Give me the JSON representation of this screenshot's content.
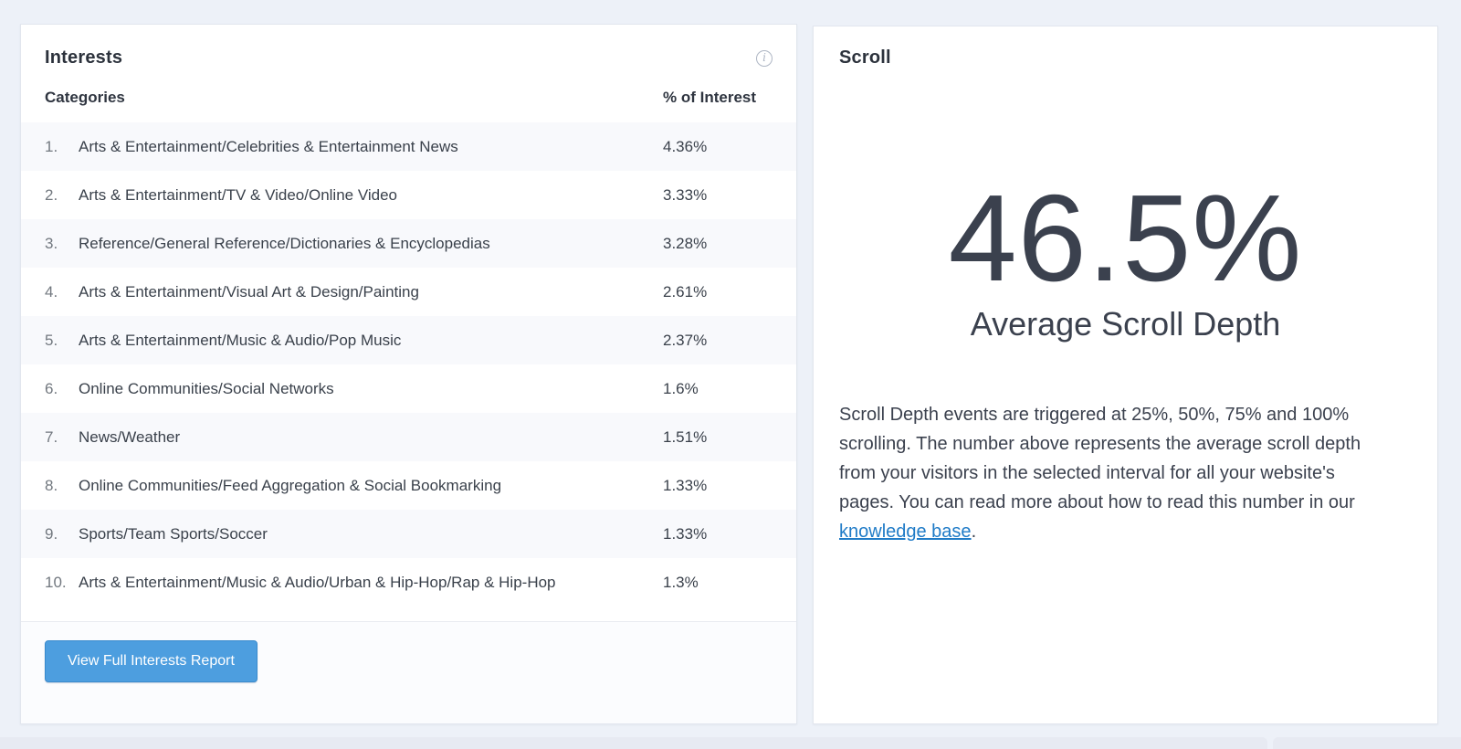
{
  "interests_panel": {
    "title": "Interests",
    "columns": {
      "category": "Categories",
      "percent": "% of Interest"
    },
    "rows": [
      {
        "rank": "1.",
        "category": "Arts & Entertainment/Celebrities & Entertainment News",
        "percent": "4.36%"
      },
      {
        "rank": "2.",
        "category": "Arts & Entertainment/TV & Video/Online Video",
        "percent": "3.33%"
      },
      {
        "rank": "3.",
        "category": "Reference/General Reference/Dictionaries & Encyclopedias",
        "percent": "3.28%"
      },
      {
        "rank": "4.",
        "category": "Arts & Entertainment/Visual Art & Design/Painting",
        "percent": "2.61%"
      },
      {
        "rank": "5.",
        "category": "Arts & Entertainment/Music & Audio/Pop Music",
        "percent": "2.37%"
      },
      {
        "rank": "6.",
        "category": "Online Communities/Social Networks",
        "percent": "1.6%"
      },
      {
        "rank": "7.",
        "category": "News/Weather",
        "percent": "1.51%"
      },
      {
        "rank": "8.",
        "category": "Online Communities/Feed Aggregation & Social Bookmarking",
        "percent": "1.33%"
      },
      {
        "rank": "9.",
        "category": "Sports/Team Sports/Soccer",
        "percent": "1.33%"
      },
      {
        "rank": "10.",
        "category": "Arts & Entertainment/Music & Audio/Urban & Hip-Hop/Rap & Hip-Hop",
        "percent": "1.3%"
      }
    ],
    "button_label": "View Full Interests Report",
    "info_icon_glyph": "i"
  },
  "scroll_panel": {
    "title": "Scroll",
    "metric_value": "46.5%",
    "metric_label": "Average Scroll Depth",
    "description_before_link": "Scroll Depth events are triggered at 25%, 50%, 75% and 100% scrolling. The number above represents the average scroll depth from your visitors in the selected interval for all your website's pages. You can read more about how to read this number in our ",
    "description_link": "knowledge base",
    "description_after_link": "."
  },
  "colors": {
    "accent_blue": "#4d9edf",
    "link_blue": "#1f7bc7",
    "metric_text": "#3b414e",
    "page_background": "#edf1f8",
    "row_stripe": "#f8f9fc"
  }
}
